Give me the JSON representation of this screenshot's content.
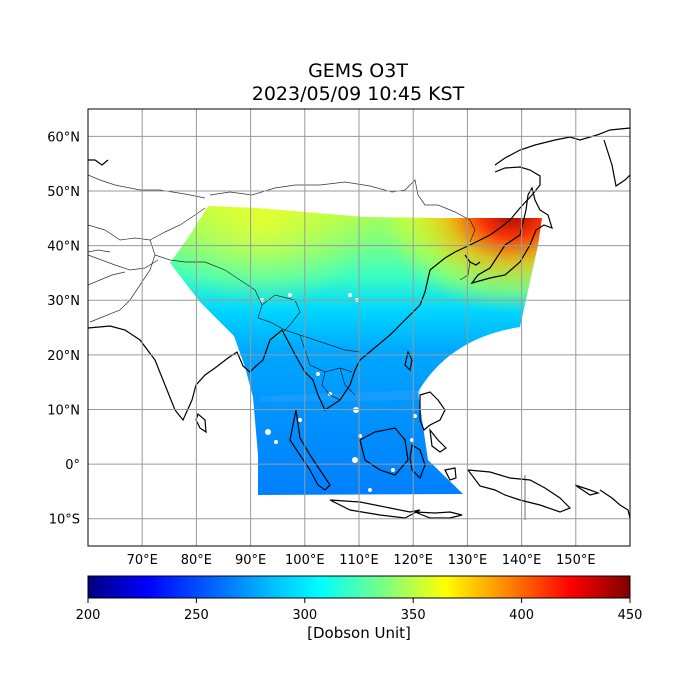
{
  "title": "GEMS O3T",
  "subtitle": "2023/05/09 10:45 KST",
  "map": {
    "lon_range": [
      60,
      160
    ],
    "lat_range": [
      -15,
      65
    ],
    "lon_ticks": [
      {
        "value": 70,
        "label": "70°E"
      },
      {
        "value": 80,
        "label": "80°E"
      },
      {
        "value": 90,
        "label": "90°E"
      },
      {
        "value": 100,
        "label": "100°E"
      },
      {
        "value": 110,
        "label": "110°E"
      },
      {
        "value": 120,
        "label": "120°E"
      },
      {
        "value": 130,
        "label": "130°E"
      },
      {
        "value": 140,
        "label": "140°E"
      },
      {
        "value": 150,
        "label": "150°E"
      }
    ],
    "lat_ticks": [
      {
        "value": 60,
        "label": "60°N"
      },
      {
        "value": 50,
        "label": "50°N"
      },
      {
        "value": 40,
        "label": "40°N"
      },
      {
        "value": 30,
        "label": "30°N"
      },
      {
        "value": 20,
        "label": "20°N"
      },
      {
        "value": 10,
        "label": "10°N"
      },
      {
        "value": 0,
        "label": "0°"
      },
      {
        "value": -10,
        "label": "10°S"
      }
    ],
    "grid": true
  },
  "colorbar": {
    "min": 200,
    "max": 450,
    "ticks": [
      "200",
      "250",
      "300",
      "350",
      "400",
      "450"
    ],
    "label": "[Dobson Unit]",
    "colormap": "jet",
    "colors": [
      "#00007f",
      "#0000ff",
      "#007fff",
      "#00ffff",
      "#7fff7f",
      "#ffff00",
      "#ff7f00",
      "#ff0000",
      "#7f0000"
    ]
  }
}
